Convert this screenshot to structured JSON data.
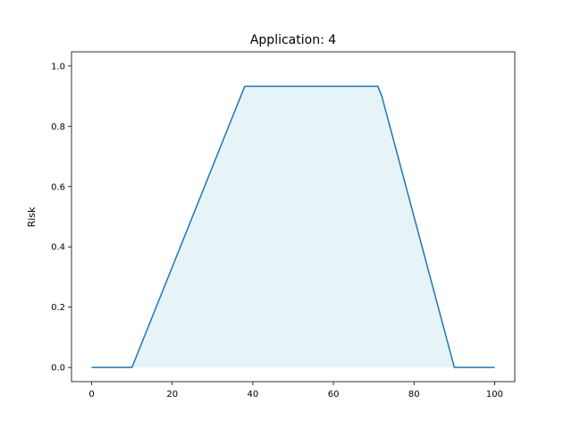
{
  "chart_data": {
    "type": "area",
    "title": "Application: 4",
    "xlabel": "",
    "ylabel": "Risk",
    "xlim": [
      -5,
      105
    ],
    "ylim": [
      -0.047,
      1.047
    ],
    "xticks": [
      0,
      20,
      40,
      60,
      80,
      100
    ],
    "yticks": [
      0.0,
      0.2,
      0.4,
      0.6,
      0.8,
      1.0
    ],
    "xtick_labels": [
      "0",
      "20",
      "40",
      "60",
      "80",
      "100"
    ],
    "ytick_labels": [
      "0.0",
      "0.2",
      "0.4",
      "0.6",
      "0.8",
      "1.0"
    ],
    "grid": false,
    "series": [
      {
        "x": [
          0,
          10,
          38,
          71,
          72,
          90,
          100
        ],
        "y": [
          0.0,
          0.0,
          0.933,
          0.933,
          0.9,
          0.0,
          0.0
        ],
        "color": "#1f77b4",
        "fill_color": "#add8e6",
        "fill_opacity": 0.3
      }
    ]
  }
}
